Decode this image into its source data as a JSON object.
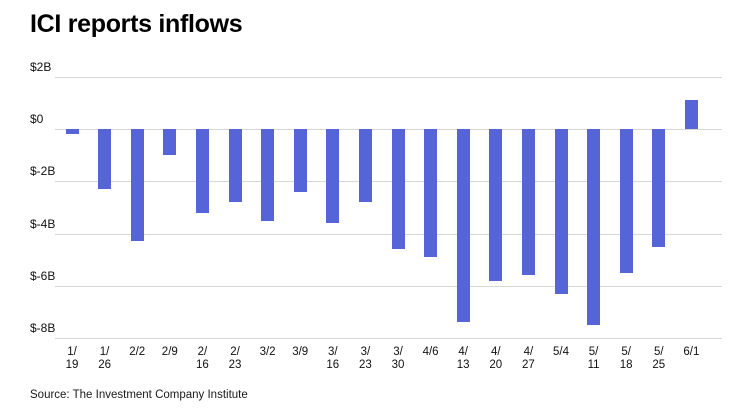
{
  "title": "ICI reports inflows",
  "source": "Source: The Investment Company Institute",
  "chart_data": {
    "type": "bar",
    "title": "ICI reports inflows",
    "categories": [
      "1/19",
      "1/26",
      "2/2",
      "2/9",
      "2/16",
      "2/23",
      "3/2",
      "3/9",
      "3/16",
      "3/23",
      "3/30",
      "4/6",
      "4/13",
      "4/20",
      "4/27",
      "5/4",
      "5/11",
      "5/18",
      "5/25",
      "6/1"
    ],
    "values": [
      -0.2,
      -2.3,
      -4.3,
      -1.0,
      -3.2,
      -2.8,
      -3.5,
      -2.4,
      -3.6,
      -2.8,
      -4.6,
      -4.9,
      -7.4,
      -5.8,
      -5.6,
      -6.3,
      -7.5,
      -5.5,
      -4.5,
      1.1
    ],
    "xlabel": "",
    "ylabel": "",
    "ylim": [
      -8,
      2
    ],
    "yticks": [
      {
        "value": 2,
        "label": "$2B"
      },
      {
        "value": 0,
        "label": "$0"
      },
      {
        "value": -2,
        "label": "$-2B"
      },
      {
        "value": -4,
        "label": "$-4B"
      },
      {
        "value": -6,
        "label": "$-6B"
      },
      {
        "value": -8,
        "label": "$-8B"
      }
    ],
    "grid": true,
    "legend": "none",
    "bar_color": "#5565d8",
    "gridline_color": "#d8d8d8"
  }
}
